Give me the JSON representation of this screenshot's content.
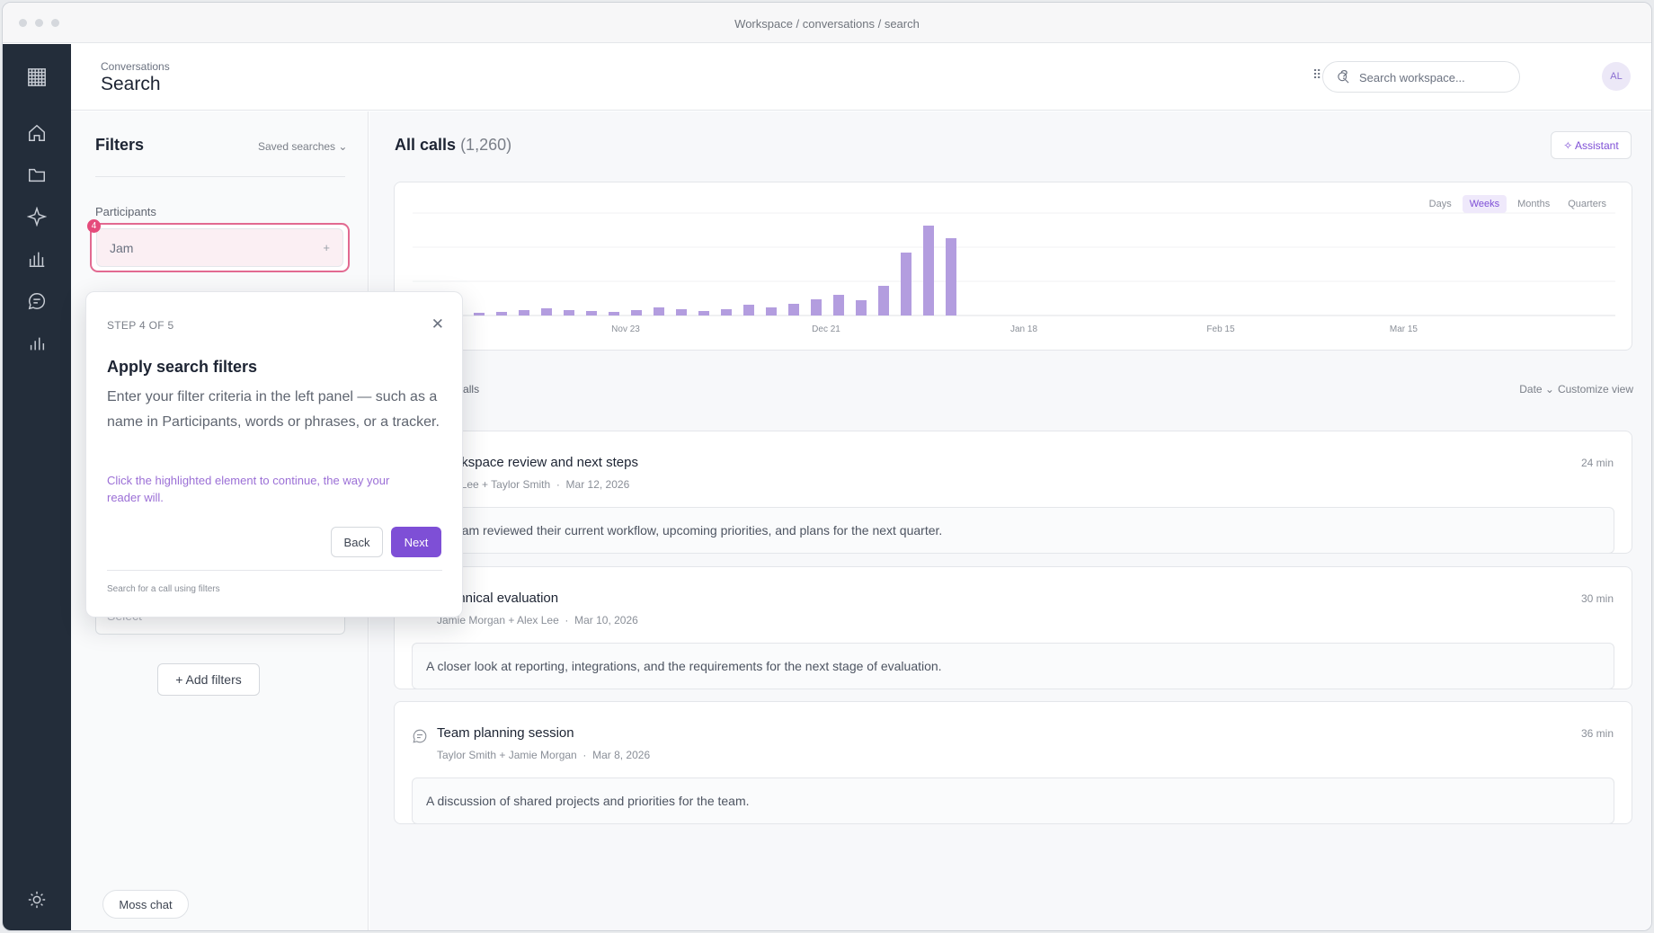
{
  "window": {
    "title": "Workspace / conversations / search"
  },
  "header": {
    "breadcrumb": "Conversations",
    "title": "Search",
    "search_placeholder": "Search workspace...",
    "apps_icon": "grid-dots-icon",
    "help_label": "?",
    "avatar_initials": "AL"
  },
  "rail": {
    "icons": [
      "home-icon",
      "folder-icon",
      "sparkle-icon",
      "bar-chart-icon",
      "chat-icon",
      "stats-icon",
      "settings-sun-icon"
    ]
  },
  "filters": {
    "title": "Filters",
    "saved_searches": "Saved searches ⌄",
    "participants_label": "Participants",
    "participant_value": "Jam",
    "participant_add": "+",
    "step_badge": "4",
    "select_placeholder": "Select",
    "add_filters": "+ Add filters",
    "moss_chat": "Moss chat"
  },
  "main": {
    "title": "All calls",
    "count": "(1,260)",
    "assistant_label": "✧ Assistant",
    "ranges": [
      "Days",
      "Weeks",
      "Months",
      "Quarters"
    ],
    "active_range": "Weeks",
    "showing": "1–3 of 1,260 calls",
    "sort": "Date ⌄",
    "customize": "Customize view"
  },
  "chart_data": {
    "type": "bar",
    "title": "",
    "xlabel": "",
    "ylabel": "",
    "x_tick_labels": [
      "Nov 23",
      "Dec 21",
      "Jan 18",
      "Feb 15",
      "Mar 15"
    ],
    "values": [
      4,
      3,
      4,
      6,
      8,
      6,
      5,
      4,
      6,
      9,
      7,
      5,
      7,
      12,
      9,
      13,
      18,
      23,
      17,
      33,
      70,
      100,
      86
    ],
    "color": "#b39ddf",
    "grid": true
  },
  "calls": [
    {
      "title": "Workspace review and next steps",
      "participants": "Alex Lee + Taylor Smith",
      "date": "Mar 12, 2026",
      "duration": "24 min",
      "summary": "The team reviewed their current workflow, upcoming priorities, and plans for the next quarter."
    },
    {
      "title": "Technical evaluation",
      "participants": "Jamie Morgan + Alex Lee",
      "date": "Mar 10, 2026",
      "duration": "30 min",
      "summary": "A closer look at reporting, integrations, and the requirements for the next stage of evaluation."
    },
    {
      "title": "Team planning session",
      "participants": "Taylor Smith + Jamie Morgan",
      "date": "Mar 8, 2026",
      "duration": "36 min",
      "summary": "A discussion of shared projects and priorities for the team."
    }
  ],
  "tour": {
    "step": "STEP 4 OF 5",
    "close": "✕",
    "title": "Apply search filters",
    "body": "Enter your filter criteria in the left panel — such as a name in Participants, words or phrases, or a tracker.",
    "hint": "Click the highlighted element to continue, the way your reader will.",
    "back": "Back",
    "next": "Next",
    "footer": "Search for a call using filters"
  }
}
